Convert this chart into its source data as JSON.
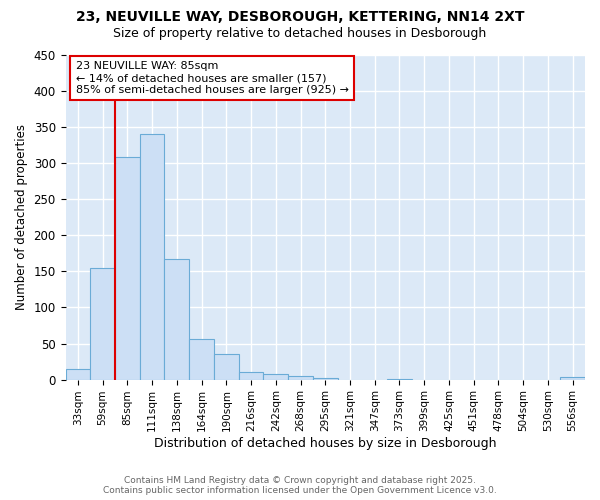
{
  "title1": "23, NEUVILLE WAY, DESBOROUGH, KETTERING, NN14 2XT",
  "title2": "Size of property relative to detached houses in Desborough",
  "xlabel": "Distribution of detached houses by size in Desborough",
  "ylabel": "Number of detached properties",
  "categories": [
    "33sqm",
    "59sqm",
    "85sqm",
    "111sqm",
    "138sqm",
    "164sqm",
    "190sqm",
    "216sqm",
    "242sqm",
    "268sqm",
    "295sqm",
    "321sqm",
    "347sqm",
    "373sqm",
    "399sqm",
    "425sqm",
    "451sqm",
    "478sqm",
    "504sqm",
    "530sqm",
    "556sqm"
  ],
  "values": [
    15,
    155,
    308,
    340,
    167,
    56,
    35,
    10,
    8,
    5,
    2,
    0,
    0,
    1,
    0,
    0,
    0,
    0,
    0,
    0,
    3
  ],
  "bar_color": "#ccdff5",
  "bar_edge_color": "#6aabd6",
  "vline_x": 2.5,
  "vline_color": "#dd0000",
  "annotation_text": "23 NEUVILLE WAY: 85sqm\n← 14% of detached houses are smaller (157)\n85% of semi-detached houses are larger (925) →",
  "annotation_box_color": "#ffffff",
  "annotation_box_edge": "#dd0000",
  "ylim": [
    0,
    450
  ],
  "yticks": [
    0,
    50,
    100,
    150,
    200,
    250,
    300,
    350,
    400,
    450
  ],
  "footer_text": "Contains HM Land Registry data © Crown copyright and database right 2025.\nContains public sector information licensed under the Open Government Licence v3.0.",
  "fig_bg_color": "#ffffff",
  "plot_bg_color": "#dce9f7"
}
